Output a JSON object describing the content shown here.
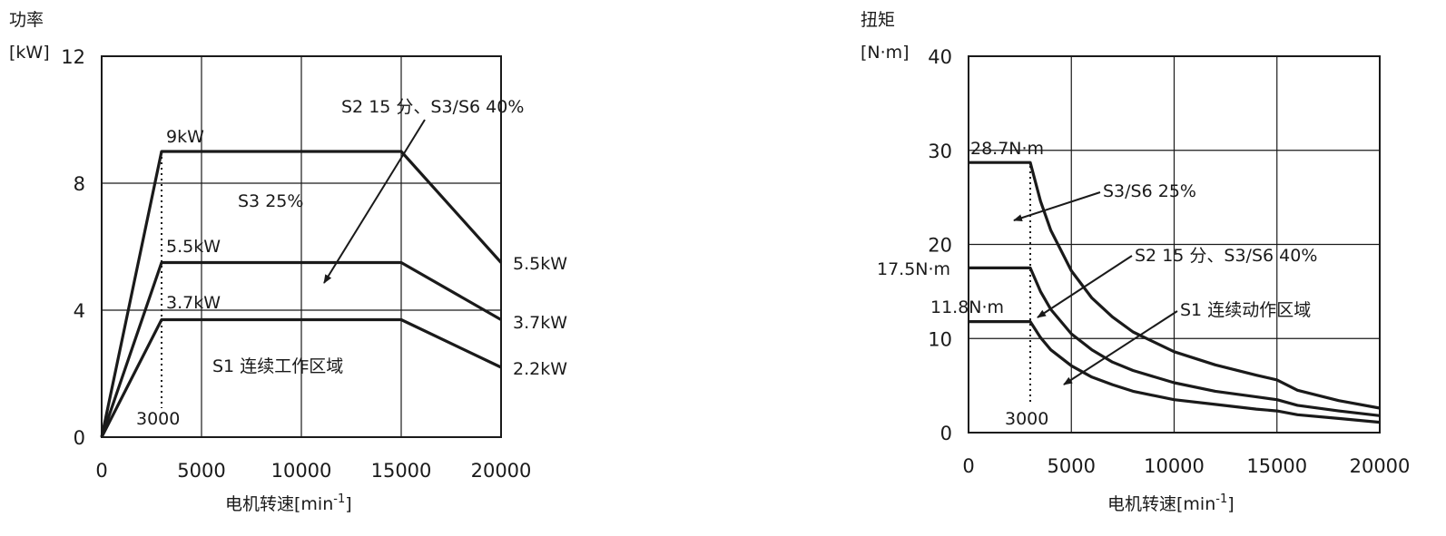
{
  "chart_data": [
    {
      "type": "line",
      "ylabel_top": "功率",
      "ylabel_unit": "[kW]",
      "xlabel": "电机转速[min",
      "xlabel_sup": "-1",
      "xlabel_end": "]",
      "xlim": [
        0,
        20000
      ],
      "ylim": [
        0,
        12
      ],
      "xticks": [
        0,
        5000,
        10000,
        15000,
        20000
      ],
      "yticks": [
        0,
        4,
        8,
        12
      ],
      "grid": true,
      "series": [
        {
          "name": "S3 25%",
          "x": [
            0,
            3000,
            15000,
            20000
          ],
          "y": [
            0,
            9,
            9,
            5.5
          ]
        },
        {
          "name": "S2 15 分、S3/S6 40%",
          "x": [
            0,
            3000,
            15000,
            20000
          ],
          "y": [
            0,
            5.5,
            5.5,
            3.7
          ]
        },
        {
          "name": "S1 连续工作区域",
          "x": [
            0,
            3000,
            15000,
            20000
          ],
          "y": [
            0,
            3.7,
            3.7,
            2.2
          ]
        }
      ],
      "base_speed_marker": {
        "x": 3000,
        "label": "3000"
      },
      "annotations": {
        "peak_labels": [
          "9kW",
          "5.5kW",
          "3.7kW"
        ],
        "end_labels": [
          "5.5kW",
          "3.7kW",
          "2.2kW"
        ],
        "region_s3": "S3 25%",
        "region_s2": "S2 15 分、S3/S6 40%",
        "region_s1": "S1 连续工作区域"
      }
    },
    {
      "type": "line",
      "ylabel_top": "扭矩",
      "ylabel_unit": "[N·m]",
      "xlabel": "电机转速[min",
      "xlabel_sup": "-1",
      "xlabel_end": "]",
      "xlim": [
        0,
        20000
      ],
      "ylim": [
        0,
        40
      ],
      "xticks": [
        0,
        5000,
        10000,
        15000,
        20000
      ],
      "yticks": [
        0,
        10,
        20,
        30,
        40
      ],
      "grid": true,
      "series": [
        {
          "name": "S3/S6 25%",
          "x": [
            0,
            3000,
            3500,
            4000,
            5000,
            6000,
            7000,
            8000,
            10000,
            12000,
            14000,
            15000,
            16000,
            18000,
            20000
          ],
          "y": [
            28.7,
            28.7,
            24.6,
            21.5,
            17.2,
            14.3,
            12.3,
            10.7,
            8.6,
            7.2,
            6.1,
            5.6,
            4.5,
            3.4,
            2.6
          ]
        },
        {
          "name": "S2 15 分、S3/S6 40%",
          "x": [
            0,
            3000,
            3500,
            4000,
            5000,
            6000,
            7000,
            8000,
            10000,
            12000,
            14000,
            15000,
            16000,
            18000,
            20000
          ],
          "y": [
            17.5,
            17.5,
            15.0,
            13.1,
            10.5,
            8.8,
            7.5,
            6.6,
            5.3,
            4.4,
            3.8,
            3.5,
            2.9,
            2.3,
            1.8
          ]
        },
        {
          "name": "S1 连续动作区域",
          "x": [
            0,
            3000,
            3500,
            4000,
            5000,
            6000,
            7000,
            8000,
            10000,
            12000,
            14000,
            15000,
            16000,
            18000,
            20000
          ],
          "y": [
            11.8,
            11.8,
            10.1,
            8.8,
            7.1,
            5.9,
            5.1,
            4.4,
            3.5,
            3.0,
            2.5,
            2.3,
            1.9,
            1.5,
            1.1
          ]
        }
      ],
      "base_speed_marker": {
        "x": 3000,
        "label": "3000"
      },
      "annotations": {
        "peak_labels": [
          "28.7N·m",
          "17.5N·m",
          "11.8N·m"
        ],
        "region_s3": "S3/S6 25%",
        "region_s2": "S2 15 分、S3/S6 40%",
        "region_s1": "S1 连续动作区域"
      }
    }
  ],
  "colors": {
    "line": "#1a1a1a",
    "grid": "#1a1a1a",
    "background": "#ffffff"
  }
}
